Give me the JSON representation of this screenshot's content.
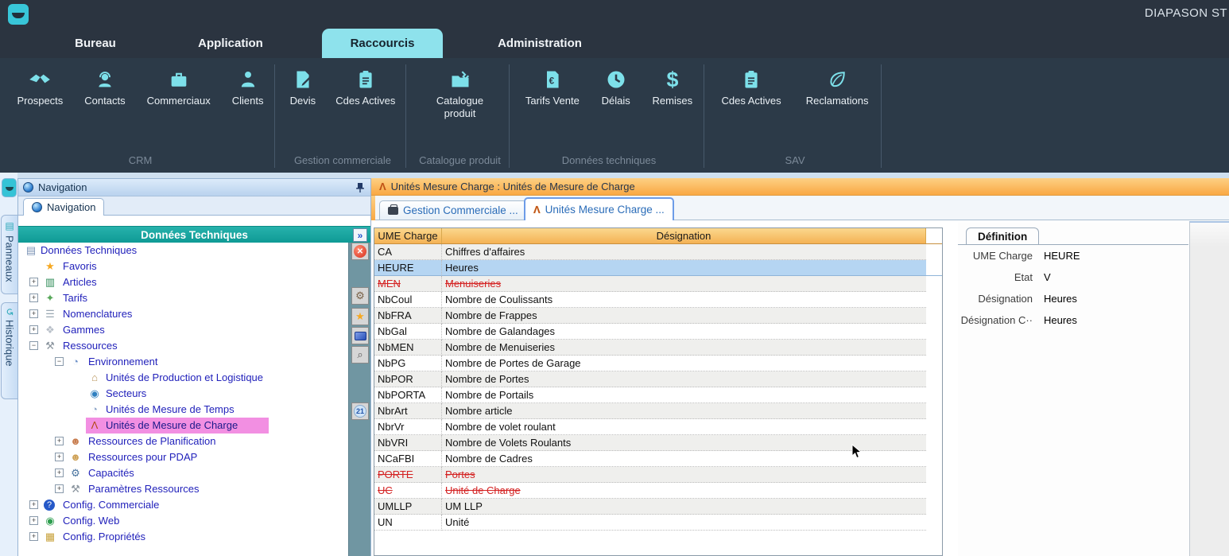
{
  "app": {
    "title_bar_text": "DIAPASON ST"
  },
  "ribbon": {
    "tabs": [
      {
        "label": "Bureau",
        "selected": false
      },
      {
        "label": "Application",
        "selected": false
      },
      {
        "label": "Raccourcis",
        "selected": true
      },
      {
        "label": "Administration",
        "selected": false
      }
    ],
    "groups": [
      {
        "name": "CRM",
        "buttons": [
          {
            "label": "Prospects",
            "icon": "handshake-icon"
          },
          {
            "label": "Contacts",
            "icon": "headset-icon"
          },
          {
            "label": "Commerciaux",
            "icon": "briefcase-icon"
          },
          {
            "label": "Clients",
            "icon": "person-icon"
          }
        ]
      },
      {
        "name": "Gestion commerciale",
        "buttons": [
          {
            "label": "Devis",
            "icon": "document-pen-icon"
          },
          {
            "label": "Cdes Actives",
            "icon": "clipboard-icon"
          }
        ]
      },
      {
        "name": "Catalogue produit",
        "buttons": [
          {
            "label": "Catalogue produit",
            "icon": "folder-wrench-icon"
          }
        ]
      },
      {
        "name": "Données techniques",
        "buttons": [
          {
            "label": "Tarifs Vente",
            "icon": "document-euro-icon"
          },
          {
            "label": "Délais",
            "icon": "clock-icon"
          },
          {
            "label": "Remises",
            "icon": "dollar-icon"
          }
        ]
      },
      {
        "name": "SAV",
        "buttons": [
          {
            "label": "Cdes Actives",
            "icon": "clipboard-icon"
          },
          {
            "label": "Reclamations",
            "icon": "leaf-icon"
          }
        ]
      }
    ]
  },
  "side_strip": {
    "tabs": [
      {
        "label": "Panneaux",
        "icon": "panels-icon",
        "glyph": "▤"
      },
      {
        "label": "Historique",
        "icon": "history-icon",
        "glyph": "↺"
      }
    ]
  },
  "nav_panel": {
    "window_title": "Navigation",
    "tab_label": "Navigation",
    "tree_title": "Données Techniques",
    "expand_all_glyph": "»",
    "tree": [
      {
        "label": "Données Techniques",
        "level": 0,
        "expand": null,
        "icon": "list-icon",
        "glyph": "▤",
        "color": "#7a93b5",
        "selected": false
      },
      {
        "label": "Favoris",
        "level": 1,
        "expand": null,
        "icon": "star-icon",
        "glyph": "★",
        "color": "#f6a821",
        "selected": false
      },
      {
        "label": "Articles",
        "level": 1,
        "expand": "+",
        "icon": "books-icon",
        "glyph": "▥",
        "color": "#2e8b57",
        "selected": false
      },
      {
        "label": "Tarifs",
        "level": 1,
        "expand": "+",
        "icon": "hand-money-icon",
        "glyph": "✦",
        "color": "#58a85a",
        "selected": false
      },
      {
        "label": "Nomenclatures",
        "level": 1,
        "expand": "+",
        "icon": "nomenclature-icon",
        "glyph": "☰",
        "color": "#9aa7b2",
        "selected": false
      },
      {
        "label": "Gammes",
        "level": 1,
        "expand": "+",
        "icon": "gammes-icon",
        "glyph": "❖",
        "color": "#b8bfc8",
        "selected": false
      },
      {
        "label": "Ressources",
        "level": 1,
        "expand": "-",
        "icon": "wrench-icon",
        "glyph": "⚒",
        "color": "#8a949e",
        "selected": false
      },
      {
        "label": "Environnement",
        "level": 2,
        "expand": "-",
        "icon": "clock-icon",
        "glyph": "◔",
        "color": "#6f93c8",
        "selected": false
      },
      {
        "label": "Unités de Production et Logistique",
        "level": 3,
        "expand": null,
        "icon": "factory-icon",
        "glyph": "⌂",
        "color": "#b8935a",
        "selected": false
      },
      {
        "label": "Secteurs",
        "level": 3,
        "expand": null,
        "icon": "globe-icon",
        "glyph": "◉",
        "color": "#2f7fc0",
        "selected": false
      },
      {
        "label": "Unités de Mesure de Temps",
        "level": 3,
        "expand": null,
        "icon": "clock-icon",
        "glyph": "◔",
        "color": "#8fa8c8",
        "selected": false
      },
      {
        "label": "Unités de Mesure de Charge",
        "level": 3,
        "expand": null,
        "icon": "compass-icon",
        "glyph": "Λ",
        "color": "#b34a14",
        "selected": true
      },
      {
        "label": "Ressources de Planification",
        "level": 2,
        "expand": "+",
        "icon": "team-icon",
        "glyph": "☻",
        "color": "#c87d4f",
        "selected": false
      },
      {
        "label": "Ressources pour PDAP",
        "level": 2,
        "expand": "+",
        "icon": "person-icon",
        "glyph": "☻",
        "color": "#cfa258",
        "selected": false
      },
      {
        "label": "Capacités",
        "level": 2,
        "expand": "+",
        "icon": "gears-icon",
        "glyph": "⚙",
        "color": "#47729e",
        "selected": false
      },
      {
        "label": "Paramètres Ressources",
        "level": 2,
        "expand": "+",
        "icon": "wrench-icon",
        "glyph": "⚒",
        "color": "#8a949e",
        "selected": false
      },
      {
        "label": "Config. Commerciale",
        "level": 1,
        "expand": "+",
        "icon": "help-icon",
        "glyph": "?",
        "color": "#ffffff",
        "badge_bg": "#2659c8",
        "selected": false
      },
      {
        "label": "Config. Web",
        "level": 1,
        "expand": "+",
        "icon": "globe-icon",
        "glyph": "◉",
        "color": "#2e9e4f",
        "selected": false
      },
      {
        "label": "Config. Propriétés",
        "level": 1,
        "expand": "+",
        "icon": "server-icon",
        "glyph": "▦",
        "color": "#c8a23c",
        "selected": false
      }
    ],
    "toolbar": [
      {
        "icon": "close-icon",
        "glyph": "✕",
        "kind": "close"
      },
      {
        "icon": "settings-gear-icon",
        "glyph": "⚙",
        "kind": "plain",
        "color": "#7a6248"
      },
      {
        "icon": "favorites-star-icon",
        "glyph": "★",
        "kind": "plain",
        "color": "#f6a821"
      },
      {
        "icon": "monitor-icon",
        "glyph": "",
        "kind": "monitor"
      },
      {
        "icon": "search-icon",
        "glyph": "⌕",
        "kind": "plain",
        "color": "#555555"
      },
      {
        "icon": "badge-21-icon",
        "glyph": "21",
        "kind": "badge"
      }
    ]
  },
  "main": {
    "window_title": "Unités Mesure Charge : Unités de Mesure de Charge",
    "tabs": [
      {
        "label": "Gestion Commerciale ...",
        "icon": "briefcase-dark-icon",
        "selected": false
      },
      {
        "label": "Unités Mesure Charge ...",
        "icon": "compass-icon",
        "selected": true
      }
    ],
    "table": {
      "columns": [
        "UME Charge",
        "Désignation"
      ],
      "rows": [
        {
          "code": "CA",
          "designation": "Chiffres d'affaires",
          "state": "normal"
        },
        {
          "code": "HEURE",
          "designation": "Heures",
          "state": "selected"
        },
        {
          "code": "MEN",
          "designation": "Menuiseries",
          "state": "deleted"
        },
        {
          "code": "NbCoul",
          "designation": "Nombre de Coulissants",
          "state": "normal"
        },
        {
          "code": "NbFRA",
          "designation": "Nombre de Frappes",
          "state": "normal"
        },
        {
          "code": "NbGal",
          "designation": "Nombre de Galandages",
          "state": "normal"
        },
        {
          "code": "NbMEN",
          "designation": "Nombre de Menuiseries",
          "state": "normal"
        },
        {
          "code": "NbPG",
          "designation": "Nombre de Portes de Garage",
          "state": "normal"
        },
        {
          "code": "NbPOR",
          "designation": "Nombre de Portes",
          "state": "normal"
        },
        {
          "code": "NbPORTA",
          "designation": "Nombre de Portails",
          "state": "normal"
        },
        {
          "code": "NbrArt",
          "designation": "Nombre article",
          "state": "normal"
        },
        {
          "code": "NbrVr",
          "designation": "Nombre de volet roulant",
          "state": "normal"
        },
        {
          "code": "NbVRI",
          "designation": "Nombre de Volets Roulants",
          "state": "normal"
        },
        {
          "code": "NCaFBI",
          "designation": "Nombre de Cadres",
          "state": "normal"
        },
        {
          "code": "PORTE",
          "designation": "Portes",
          "state": "deleted"
        },
        {
          "code": "UC",
          "designation": "Unité de Charge",
          "state": "deleted"
        },
        {
          "code": "UMLLP",
          "designation": "UM LLP",
          "state": "normal"
        },
        {
          "code": "UN",
          "designation": "Unité",
          "state": "normal"
        }
      ]
    }
  },
  "definition": {
    "tab_label": "Définition",
    "fields": [
      {
        "label": "UME Charge",
        "value": "HEURE"
      },
      {
        "label": "Etat",
        "value": "V"
      },
      {
        "label": "Désignation",
        "value": "Heures"
      },
      {
        "label": "Désignation C··",
        "value": "Heures"
      }
    ]
  },
  "colors": {
    "dark_bar": "#2b3440",
    "ribbon_icon_cyan": "#7de0ea",
    "selected_tab_cyan": "#8ee2ec",
    "teal_header": "#0f9a95",
    "orange_titlebar": "#f9a843",
    "table_header_orange": "#f4b254",
    "selected_row_blue": "#b5d5f2",
    "tree_selected_pink": "#f28fe2",
    "deleted_red": "#d42222",
    "tree_text_blue": "#2222bb"
  }
}
